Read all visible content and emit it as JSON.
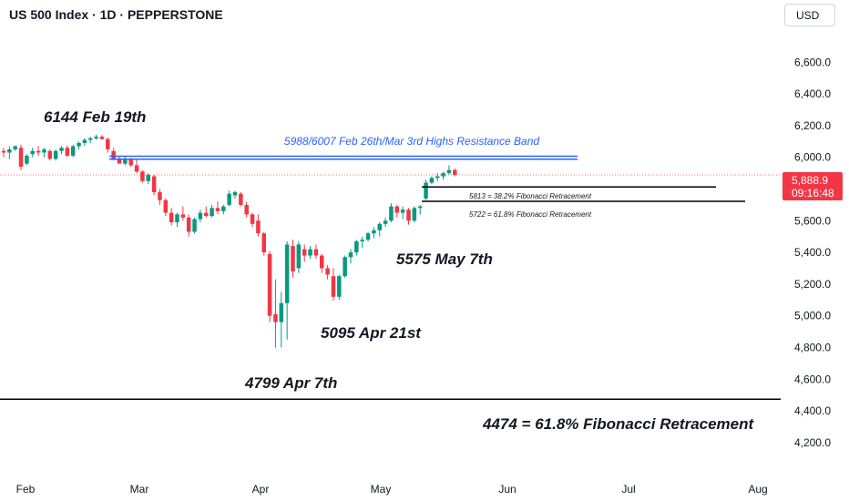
{
  "header": {
    "symbol": "US 500 Index",
    "sep1": "·",
    "interval": "1D",
    "sep2": "·",
    "source": "PEPPERSTONE"
  },
  "currency_button": "USD",
  "last_price": {
    "value": "5,888.9",
    "countdown": "09:16:48",
    "color": "#f23645"
  },
  "colors": {
    "up": "#089981",
    "down": "#f23645",
    "resistance": "#2962ff",
    "annotation_blue": "#2962ff",
    "fib_line": "#000000",
    "axis_text": "#131722"
  },
  "chart_data": {
    "type": "candlestick",
    "y_axis": {
      "ylim": [
        4050,
        6820
      ],
      "ticks": [
        4200,
        4400,
        4600,
        4800,
        5000,
        5200,
        5400,
        5600,
        5800,
        6000,
        6200,
        6400,
        6600
      ],
      "tick_labels": [
        "4,200.0",
        "4,400.0",
        "4,600.0",
        "4,800.0",
        "5,000.0",
        "5,200.0",
        "5,400.0",
        "5,600.0",
        "",
        "6,000.0",
        "6,200.0",
        "6,400.0",
        "6,600.0"
      ]
    },
    "x_axis": {
      "labels": [
        "Feb",
        "Mar",
        "Apr",
        "May",
        "Jun",
        "Jul",
        "Aug"
      ]
    },
    "grid": false,
    "candles": [
      {
        "o": 6040,
        "h": 6060,
        "l": 6000,
        "c": 6030
      },
      {
        "o": 6030,
        "h": 6070,
        "l": 5990,
        "c": 6050
      },
      {
        "o": 6050,
        "h": 6075,
        "l": 6040,
        "c": 6070
      },
      {
        "o": 6060,
        "h": 6080,
        "l": 5920,
        "c": 5940
      },
      {
        "o": 5960,
        "h": 6020,
        "l": 5950,
        "c": 6010
      },
      {
        "o": 6020,
        "h": 6060,
        "l": 6000,
        "c": 6040
      },
      {
        "o": 6040,
        "h": 6070,
        "l": 6010,
        "c": 6030
      },
      {
        "o": 6030,
        "h": 6060,
        "l": 6000,
        "c": 6050
      },
      {
        "o": 6040,
        "h": 6050,
        "l": 5980,
        "c": 5990
      },
      {
        "o": 5990,
        "h": 6050,
        "l": 5980,
        "c": 6040
      },
      {
        "o": 6040,
        "h": 6070,
        "l": 6020,
        "c": 6060
      },
      {
        "o": 6060,
        "h": 6075,
        "l": 6000,
        "c": 6010
      },
      {
        "o": 6010,
        "h": 6080,
        "l": 6000,
        "c": 6070
      },
      {
        "o": 6070,
        "h": 6100,
        "l": 6050,
        "c": 6090
      },
      {
        "o": 6090,
        "h": 6120,
        "l": 6070,
        "c": 6110
      },
      {
        "o": 6110,
        "h": 6130,
        "l": 6090,
        "c": 6120
      },
      {
        "o": 6120,
        "h": 6144,
        "l": 6110,
        "c": 6130
      },
      {
        "o": 6130,
        "h": 6140,
        "l": 6110,
        "c": 6115
      },
      {
        "o": 6115,
        "h": 6125,
        "l": 6030,
        "c": 6050
      },
      {
        "o": 6040,
        "h": 6060,
        "l": 5980,
        "c": 5990
      },
      {
        "o": 5990,
        "h": 6010,
        "l": 5960,
        "c": 5960
      },
      {
        "o": 5960,
        "h": 6007,
        "l": 5950,
        "c": 5990
      },
      {
        "o": 5990,
        "h": 5995,
        "l": 5940,
        "c": 5950
      },
      {
        "o": 5950,
        "h": 5988,
        "l": 5900,
        "c": 5910
      },
      {
        "o": 5910,
        "h": 5920,
        "l": 5840,
        "c": 5850
      },
      {
        "o": 5850,
        "h": 5900,
        "l": 5830,
        "c": 5890
      },
      {
        "o": 5880,
        "h": 5890,
        "l": 5760,
        "c": 5780
      },
      {
        "o": 5780,
        "h": 5800,
        "l": 5700,
        "c": 5730
      },
      {
        "o": 5730,
        "h": 5740,
        "l": 5630,
        "c": 5650
      },
      {
        "o": 5650,
        "h": 5680,
        "l": 5570,
        "c": 5590
      },
      {
        "o": 5590,
        "h": 5650,
        "l": 5560,
        "c": 5640
      },
      {
        "o": 5640,
        "h": 5690,
        "l": 5600,
        "c": 5620
      },
      {
        "o": 5620,
        "h": 5640,
        "l": 5500,
        "c": 5530
      },
      {
        "o": 5530,
        "h": 5620,
        "l": 5520,
        "c": 5610
      },
      {
        "o": 5610,
        "h": 5670,
        "l": 5590,
        "c": 5650
      },
      {
        "o": 5650,
        "h": 5690,
        "l": 5620,
        "c": 5630
      },
      {
        "o": 5630,
        "h": 5700,
        "l": 5620,
        "c": 5680
      },
      {
        "o": 5680,
        "h": 5720,
        "l": 5640,
        "c": 5660
      },
      {
        "o": 5660,
        "h": 5700,
        "l": 5640,
        "c": 5690
      },
      {
        "o": 5700,
        "h": 5790,
        "l": 5690,
        "c": 5770
      },
      {
        "o": 5760,
        "h": 5790,
        "l": 5740,
        "c": 5780
      },
      {
        "o": 5770,
        "h": 5780,
        "l": 5690,
        "c": 5700
      },
      {
        "o": 5700,
        "h": 5720,
        "l": 5620,
        "c": 5640
      },
      {
        "o": 5640,
        "h": 5650,
        "l": 5560,
        "c": 5580
      },
      {
        "o": 5600,
        "h": 5640,
        "l": 5500,
        "c": 5520
      },
      {
        "o": 5520,
        "h": 5530,
        "l": 5380,
        "c": 5400
      },
      {
        "o": 5390,
        "h": 5410,
        "l": 4960,
        "c": 5000
      },
      {
        "o": 5010,
        "h": 5230,
        "l": 4799,
        "c": 4960
      },
      {
        "o": 4960,
        "h": 5150,
        "l": 4800,
        "c": 5080
      },
      {
        "o": 5080,
        "h": 5470,
        "l": 4850,
        "c": 5450
      },
      {
        "o": 5440,
        "h": 5480,
        "l": 5240,
        "c": 5280
      },
      {
        "o": 5300,
        "h": 5470,
        "l": 5270,
        "c": 5450
      },
      {
        "o": 5420,
        "h": 5450,
        "l": 5340,
        "c": 5380
      },
      {
        "o": 5380,
        "h": 5440,
        "l": 5360,
        "c": 5420
      },
      {
        "o": 5420,
        "h": 5450,
        "l": 5360,
        "c": 5380
      },
      {
        "o": 5380,
        "h": 5390,
        "l": 5270,
        "c": 5300
      },
      {
        "o": 5300,
        "h": 5320,
        "l": 5230,
        "c": 5260
      },
      {
        "o": 5250,
        "h": 5300,
        "l": 5095,
        "c": 5120
      },
      {
        "o": 5120,
        "h": 5260,
        "l": 5100,
        "c": 5250
      },
      {
        "o": 5250,
        "h": 5380,
        "l": 5240,
        "c": 5370
      },
      {
        "o": 5370,
        "h": 5420,
        "l": 5330,
        "c": 5400
      },
      {
        "o": 5400,
        "h": 5480,
        "l": 5380,
        "c": 5470
      },
      {
        "o": 5470,
        "h": 5500,
        "l": 5430,
        "c": 5480
      },
      {
        "o": 5480,
        "h": 5530,
        "l": 5470,
        "c": 5520
      },
      {
        "o": 5520,
        "h": 5560,
        "l": 5490,
        "c": 5540
      },
      {
        "o": 5540,
        "h": 5590,
        "l": 5500,
        "c": 5580
      },
      {
        "o": 5580,
        "h": 5620,
        "l": 5560,
        "c": 5600
      },
      {
        "o": 5600,
        "h": 5710,
        "l": 5590,
        "c": 5690
      },
      {
        "o": 5690,
        "h": 5700,
        "l": 5620,
        "c": 5650
      },
      {
        "o": 5650,
        "h": 5690,
        "l": 5610,
        "c": 5670
      },
      {
        "o": 5670,
        "h": 5680,
        "l": 5575,
        "c": 5600
      },
      {
        "o": 5600,
        "h": 5690,
        "l": 5590,
        "c": 5680
      },
      {
        "o": 5680,
        "h": 5700,
        "l": 5640,
        "c": 5690
      },
      {
        "o": 5740,
        "h": 5860,
        "l": 5730,
        "c": 5840
      },
      {
        "o": 5840,
        "h": 5880,
        "l": 5830,
        "c": 5870
      },
      {
        "o": 5870,
        "h": 5900,
        "l": 5850,
        "c": 5880
      },
      {
        "o": 5880,
        "h": 5910,
        "l": 5860,
        "c": 5900
      },
      {
        "o": 5900,
        "h": 5950,
        "l": 5890,
        "c": 5920
      },
      {
        "o": 5920,
        "h": 5930,
        "l": 5880,
        "c": 5889
      }
    ],
    "horizontal_lines": [
      {
        "value": 4474,
        "kind": "fib"
      },
      {
        "value": 5813,
        "kind": "fib"
      },
      {
        "value": 5722,
        "kind": "fib"
      },
      {
        "value": 5988,
        "kind": "resistance"
      },
      {
        "value": 6007,
        "kind": "resistance"
      }
    ],
    "last_price_value": 5888.9,
    "annotations": [
      {
        "text": "6144 Feb 19th"
      },
      {
        "text": "5988/6007 Feb 26th/Mar 3rd Highs Resistance Band"
      },
      {
        "text": "5813 = 38.2% Fibonacci Retracement"
      },
      {
        "text": "5722 = 61.8% Fibonacci Retracement"
      },
      {
        "text": "5575 May 7th"
      },
      {
        "text": "5095 Apr 21st"
      },
      {
        "text": "4799 Apr 7th"
      },
      {
        "text": "4474 = 61.8% Fibonacci Retracement"
      }
    ]
  }
}
